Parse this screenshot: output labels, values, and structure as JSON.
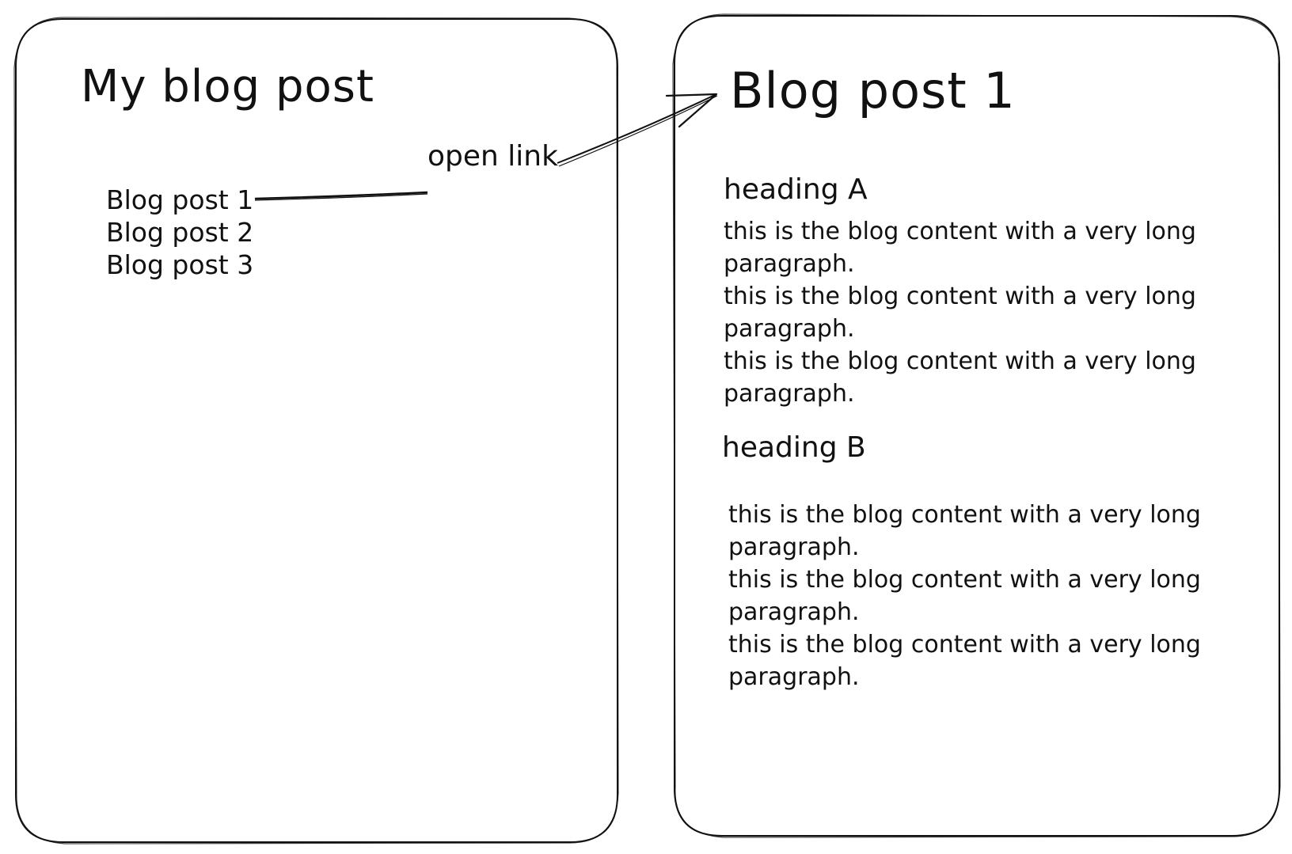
{
  "left_panel": {
    "title": "My blog post",
    "posts": [
      "Blog post 1",
      "Blog post 2",
      "Blog post 3"
    ]
  },
  "annotation": {
    "label": "open link"
  },
  "right_panel": {
    "title": "Blog post 1",
    "sections": [
      {
        "heading": "heading A",
        "paragraphs": [
          "this is the blog content with a very long paragraph.",
          "this is the blog content with a very long paragraph.",
          "this is the blog content with a very long paragraph."
        ]
      },
      {
        "heading": "heading B",
        "paragraphs": [
          "this is the blog content with a very long paragraph.",
          "this is the blog content with a very long paragraph.",
          "this is the blog content with a very long paragraph."
        ]
      }
    ]
  },
  "colors": {
    "ink": "#111111",
    "background": "#ffffff"
  }
}
